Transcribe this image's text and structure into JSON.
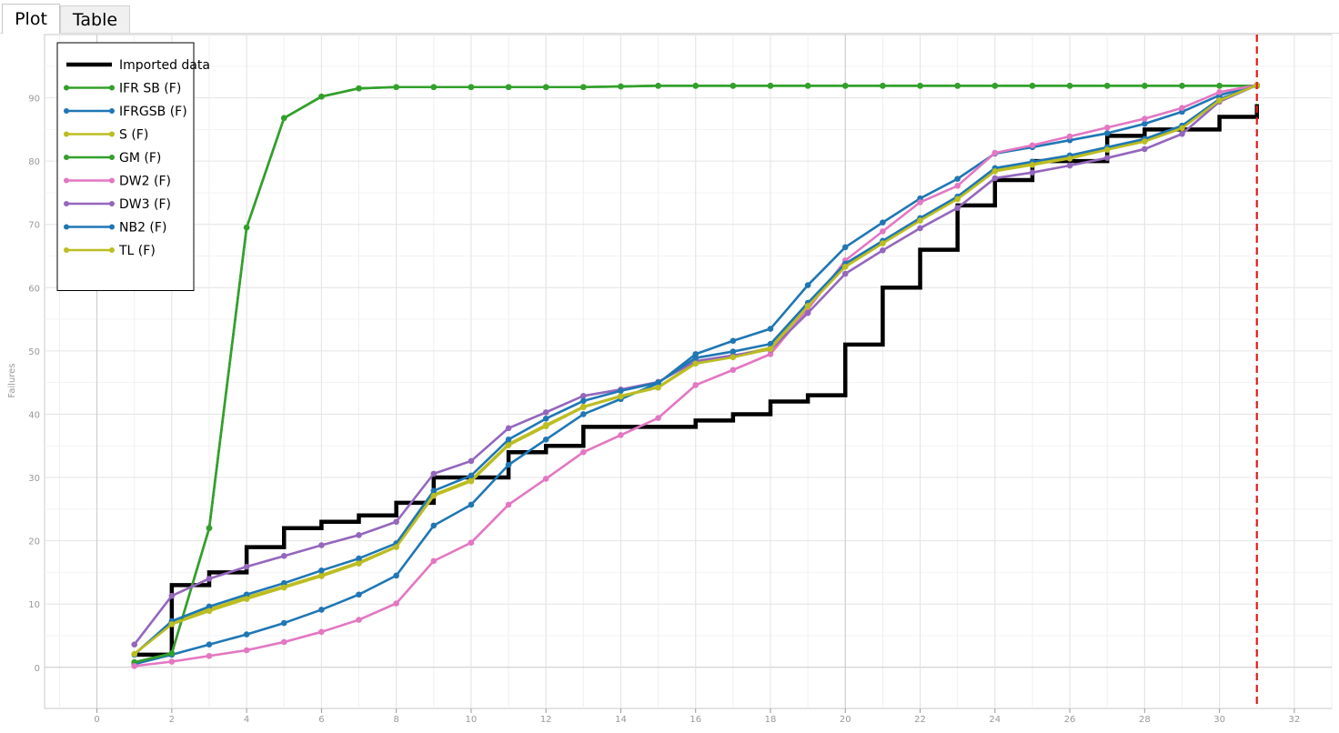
{
  "tabs": [
    {
      "label": "Plot",
      "active": true
    },
    {
      "label": "Table",
      "active": false
    }
  ],
  "chart_data": {
    "type": "line",
    "ylabel": "Failures",
    "xlabel": "",
    "xlim": [
      -1.4,
      33
    ],
    "ylim": [
      -6.5,
      100
    ],
    "xticks": [
      0,
      2,
      4,
      6,
      8,
      10,
      12,
      14,
      16,
      18,
      20,
      22,
      24,
      26,
      28,
      30,
      32
    ],
    "yticks": [
      0,
      10,
      20,
      30,
      40,
      50,
      60,
      70,
      80,
      90
    ],
    "grid": true,
    "legend_position": "top-left",
    "vertical_marker": {
      "x": 31,
      "color": "#e21b1b",
      "style": "dashed"
    },
    "series": [
      {
        "name": "Imported data",
        "color": "#000000",
        "style": "step",
        "x": [
          1,
          2,
          3,
          4,
          5,
          6,
          7,
          8,
          9,
          10,
          11,
          12,
          13,
          14,
          15,
          16,
          17,
          18,
          19,
          20,
          21,
          22,
          23,
          24,
          25,
          26,
          27,
          28,
          29,
          30,
          31
        ],
        "y": [
          2,
          13,
          15,
          19,
          22,
          23,
          24,
          26,
          30,
          30,
          34,
          35,
          38,
          38,
          38,
          39,
          40,
          42,
          43,
          51,
          60,
          66,
          73,
          77,
          80,
          80,
          84,
          85,
          85,
          87,
          89
        ]
      },
      {
        "name": "IFR SB (F)",
        "color": "#33a02c",
        "x": [
          1,
          2,
          3,
          4,
          5,
          6,
          7,
          8,
          9,
          10,
          11,
          12,
          13,
          14,
          15,
          16,
          17,
          18,
          19,
          20,
          21,
          22,
          23,
          24,
          25,
          26,
          27,
          28,
          29,
          30,
          31
        ],
        "y": [
          0.8,
          2.2,
          22,
          69.5,
          86.8,
          90.2,
          91.5,
          91.7,
          91.7,
          91.7,
          91.7,
          91.7,
          91.7,
          91.8,
          91.9,
          91.9,
          91.9,
          91.9,
          91.9,
          91.9,
          91.9,
          91.9,
          91.9,
          91.9,
          91.9,
          91.9,
          91.9,
          91.9,
          91.9,
          91.9,
          91.9
        ]
      },
      {
        "name": "IFRGSB (F)",
        "color": "#1f77b4",
        "x": [
          1,
          2,
          3,
          4,
          5,
          6,
          7,
          8,
          9,
          10,
          11,
          12,
          13,
          14,
          15,
          16,
          17,
          18,
          19,
          20,
          21,
          22,
          23,
          24,
          25,
          26,
          27,
          28,
          29,
          30,
          31
        ],
        "y": [
          0.5,
          2,
          3.6,
          5.2,
          7,
          9.1,
          11.5,
          14.5,
          22.4,
          25.7,
          32,
          36,
          40,
          42.4,
          44.9,
          49.5,
          51.6,
          53.5,
          60.4,
          66.4,
          70.3,
          74.1,
          77.2,
          81.2,
          82.2,
          83.3,
          84.4,
          85.9,
          87.8,
          90.4,
          92
        ]
      },
      {
        "name": "S (F)",
        "color": "#bcbd22",
        "x": [
          1,
          2,
          3,
          4,
          5,
          6,
          7,
          8,
          9,
          10,
          11,
          12,
          13,
          14,
          15,
          16,
          17,
          18,
          19,
          20,
          21,
          22,
          23,
          24,
          25,
          26,
          27,
          28,
          29,
          30,
          31
        ],
        "y": [
          2.1,
          7.2,
          9.2,
          11.1,
          12.8,
          14.6,
          16.6,
          19.1,
          27.3,
          29.6,
          35.3,
          38.3,
          41.2,
          42.9,
          44.3,
          48.2,
          49.2,
          50.5,
          57.3,
          63.5,
          67.2,
          70.8,
          74.3,
          78.6,
          79.6,
          80.6,
          82,
          83.3,
          85.4,
          89.7,
          92
        ]
      },
      {
        "name": "GM (F)",
        "color": "#33a02c",
        "x": [
          1,
          2,
          3,
          4,
          5,
          6,
          7,
          8,
          9,
          10,
          11,
          12,
          13,
          14,
          15,
          16,
          17,
          18,
          19,
          20,
          21,
          22,
          23,
          24,
          25,
          26,
          27,
          28,
          29,
          30,
          31
        ],
        "y": [
          0.8,
          2.2,
          22,
          69.5,
          86.8,
          90.2,
          91.5,
          91.7,
          91.7,
          91.7,
          91.7,
          91.7,
          91.7,
          91.8,
          91.9,
          91.9,
          91.9,
          91.9,
          91.9,
          91.9,
          91.9,
          91.9,
          91.9,
          91.9,
          91.9,
          91.9,
          91.9,
          91.9,
          91.9,
          91.9,
          91.9
        ]
      },
      {
        "name": "DW2 (F)",
        "color": "#e377c2",
        "x": [
          1,
          2,
          3,
          4,
          5,
          6,
          7,
          8,
          9,
          10,
          11,
          12,
          13,
          14,
          15,
          16,
          17,
          18,
          19,
          20,
          21,
          22,
          23,
          24,
          25,
          26,
          27,
          28,
          29,
          30,
          31
        ],
        "y": [
          0.2,
          0.9,
          1.8,
          2.7,
          4,
          5.6,
          7.5,
          10.1,
          16.8,
          19.7,
          25.7,
          29.8,
          34,
          36.7,
          39.4,
          44.6,
          47,
          49.5,
          56.6,
          64.3,
          68.9,
          73.5,
          76.1,
          81.3,
          82.5,
          83.9,
          85.3,
          86.7,
          88.4,
          90.9,
          92
        ]
      },
      {
        "name": "DW3 (F)",
        "color": "#9467bd",
        "x": [
          1,
          2,
          3,
          4,
          5,
          6,
          7,
          8,
          9,
          10,
          11,
          12,
          13,
          14,
          15,
          16,
          17,
          18,
          19,
          20,
          21,
          22,
          23,
          24,
          25,
          26,
          27,
          28,
          29,
          30,
          31
        ],
        "y": [
          3.6,
          11.3,
          14,
          15.9,
          17.6,
          19.3,
          20.9,
          23,
          30.6,
          32.6,
          37.8,
          40.3,
          42.9,
          43.9,
          45.1,
          48.4,
          49.3,
          50.2,
          56,
          62.2,
          65.9,
          69.4,
          72.6,
          77.3,
          78.2,
          79.3,
          80.5,
          81.9,
          84.3,
          89.4,
          92
        ]
      },
      {
        "name": "NB2 (F)",
        "color": "#1f77b4",
        "x": [
          1,
          2,
          3,
          4,
          5,
          6,
          7,
          8,
          9,
          10,
          11,
          12,
          13,
          14,
          15,
          16,
          17,
          18,
          19,
          20,
          21,
          22,
          23,
          24,
          25,
          26,
          27,
          28,
          29,
          30,
          31
        ],
        "y": [
          2,
          7.3,
          9.6,
          11.5,
          13.3,
          15.3,
          17.2,
          19.6,
          27.9,
          30.3,
          36,
          39.3,
          42.1,
          43.7,
          45,
          48.9,
          49.9,
          51.1,
          57.6,
          63.8,
          67.4,
          71,
          74.4,
          78.9,
          79.9,
          80.9,
          82.2,
          83.5,
          85.6,
          89.8,
          92
        ]
      },
      {
        "name": "TL (F)",
        "color": "#bcbd22",
        "x": [
          1,
          2,
          3,
          4,
          5,
          6,
          7,
          8,
          9,
          10,
          11,
          12,
          13,
          14,
          15,
          16,
          17,
          18,
          19,
          20,
          21,
          22,
          23,
          24,
          25,
          26,
          27,
          28,
          29,
          30,
          31
        ],
        "y": [
          2.1,
          6.8,
          8.9,
          10.8,
          12.6,
          14.4,
          16.4,
          19,
          27.1,
          29.4,
          35.1,
          38.1,
          41.1,
          42.8,
          44.2,
          48,
          49,
          50.3,
          57.1,
          63.3,
          67,
          70.6,
          74,
          78.4,
          79.4,
          80.4,
          81.8,
          83.1,
          85.2,
          89.6,
          92
        ]
      }
    ]
  }
}
